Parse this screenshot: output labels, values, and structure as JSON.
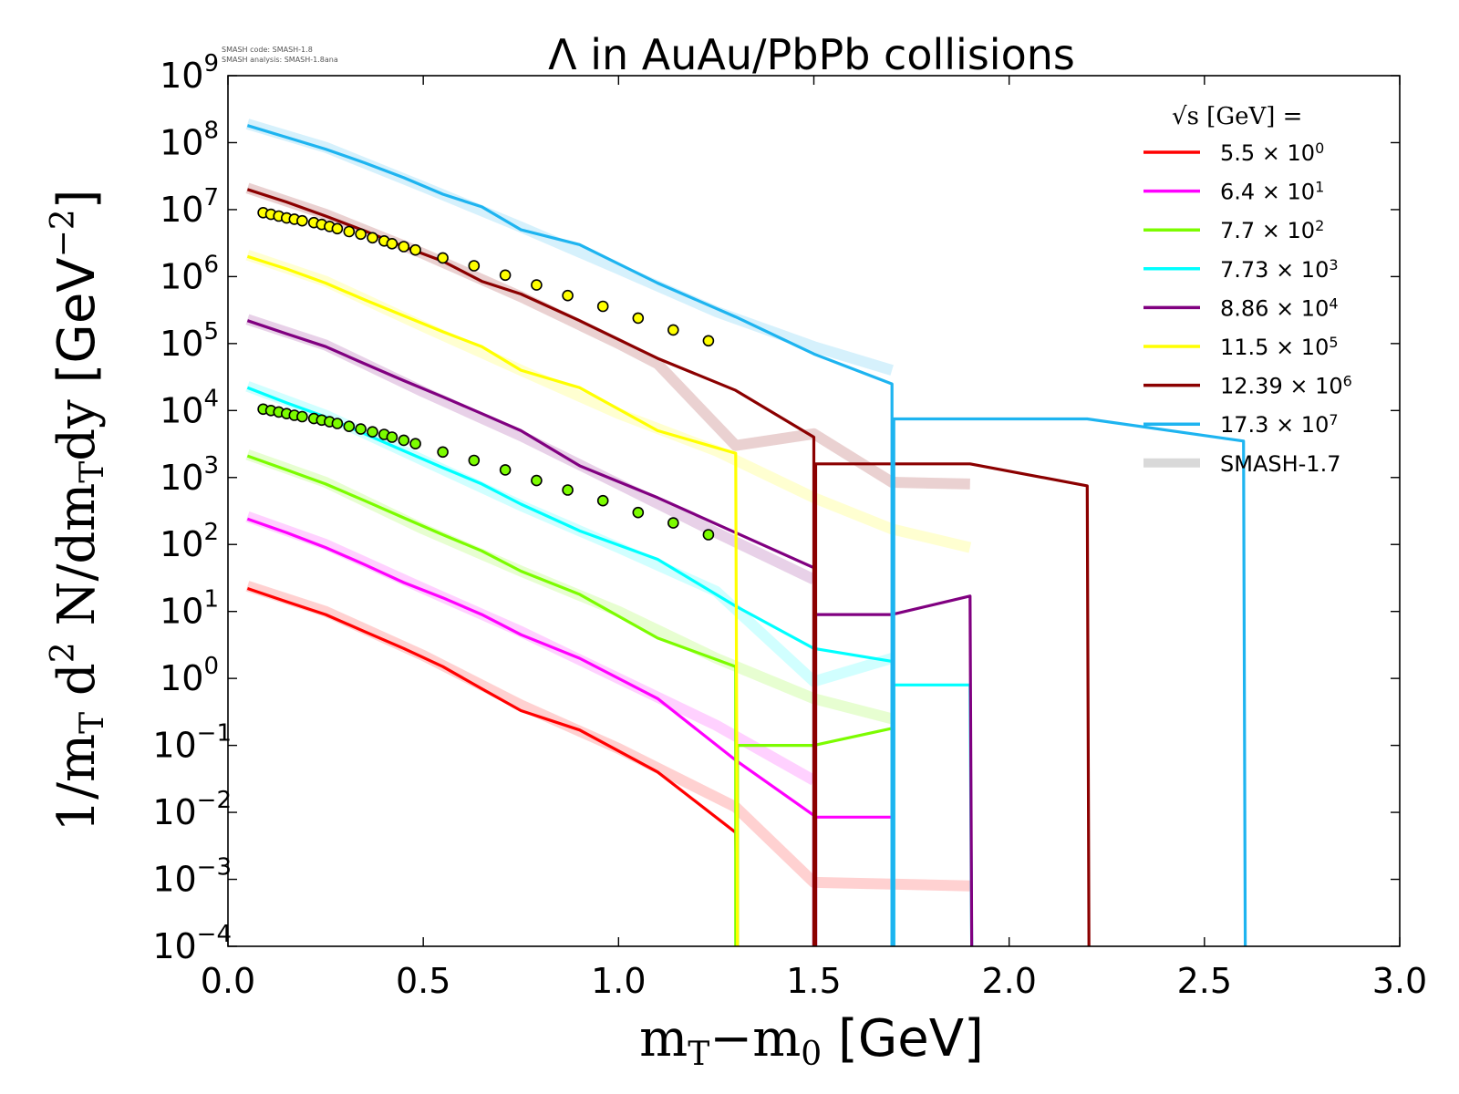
{
  "credits": {
    "line1": "SMASH code:      SMASH-1.8",
    "line2": "SMASH analysis: SMASH-1.8ana"
  },
  "chart_data": {
    "type": "line",
    "title": "Λ in AuAu/PbPb collisions",
    "xlabel": "m_T−m_0 [GeV]",
    "ylabel": "1/m_T d^2 N/dm_T dy [GeV^−2]",
    "xlim": [
      0.0,
      3.0
    ],
    "ylim": [
      0.0001,
      1000000000
    ],
    "yscale": "log",
    "x_ticks": [
      "0.0",
      "0.5",
      "1.0",
      "1.5",
      "2.0",
      "2.5",
      "3.0"
    ],
    "y_tick_exponents": [
      "9",
      "8",
      "7",
      "6",
      "5",
      "4",
      "3",
      "2",
      "1",
      "0",
      "−1",
      "−2",
      "−3",
      "−4"
    ],
    "legend": {
      "placement": "top-right",
      "title": "√s  [GeV] =",
      "reference_label": "SMASH-1.7"
    },
    "series": [
      {
        "name": "5.5 × 10^0",
        "label_main": "5.5",
        "label_exp": "0",
        "color": "#ff0000",
        "points": [
          [
            0.05,
            22
          ],
          [
            0.15,
            14
          ],
          [
            0.25,
            9
          ],
          [
            0.35,
            5
          ],
          [
            0.45,
            2.8
          ],
          [
            0.55,
            1.5
          ],
          [
            0.65,
            0.7
          ],
          [
            0.75,
            0.33
          ],
          [
            0.9,
            0.17
          ],
          [
            1.1,
            0.04
          ],
          [
            1.3,
            0.005
          ]
        ],
        "drop_x": 1.3,
        "reference": [
          [
            0.05,
            24
          ],
          [
            0.25,
            10
          ],
          [
            0.5,
            2.2
          ],
          [
            0.75,
            0.4
          ],
          [
            1.0,
            0.09
          ],
          [
            1.3,
            0.012
          ],
          [
            1.5,
            0.0009
          ],
          [
            1.7,
            0.00085
          ],
          [
            1.9,
            0.0008
          ]
        ]
      },
      {
        "name": "6.4 × 10^1",
        "label_main": "6.4",
        "label_exp": "1",
        "color": "#ff00ff",
        "points": [
          [
            0.05,
            240
          ],
          [
            0.15,
            150
          ],
          [
            0.25,
            90
          ],
          [
            0.35,
            50
          ],
          [
            0.45,
            27
          ],
          [
            0.55,
            16
          ],
          [
            0.65,
            9
          ],
          [
            0.75,
            4.5
          ],
          [
            0.9,
            2
          ],
          [
            1.1,
            0.5
          ],
          [
            1.3,
            0.06
          ],
          [
            1.5,
            0.009
          ],
          [
            1.7,
            0.0085
          ]
        ],
        "drop_x": 1.5,
        "reference": [
          [
            0.05,
            260
          ],
          [
            0.25,
            100
          ],
          [
            0.5,
            22
          ],
          [
            0.75,
            5
          ],
          [
            1.0,
            1
          ],
          [
            1.25,
            0.2
          ],
          [
            1.5,
            0.03
          ]
        ]
      },
      {
        "name": "7.7 × 10^2",
        "label_main": "7.7",
        "label_exp": "2",
        "color": "#7cfc00",
        "points": [
          [
            0.05,
            2100
          ],
          [
            0.15,
            1300
          ],
          [
            0.25,
            800
          ],
          [
            0.35,
            450
          ],
          [
            0.45,
            250
          ],
          [
            0.55,
            140
          ],
          [
            0.65,
            80
          ],
          [
            0.75,
            40
          ],
          [
            0.9,
            18
          ],
          [
            1.1,
            4
          ],
          [
            1.3,
            1.5
          ],
          [
            1.5,
            0.1
          ],
          [
            1.7,
            0.18
          ]
        ],
        "drop_x": 1.3,
        "reference": [
          [
            0.05,
            2200
          ],
          [
            0.25,
            850
          ],
          [
            0.5,
            170
          ],
          [
            0.75,
            40
          ],
          [
            1.0,
            10
          ],
          [
            1.25,
            2
          ],
          [
            1.5,
            0.5
          ],
          [
            1.7,
            0.25
          ]
        ]
      },
      {
        "name": "7.73 × 10^3",
        "label_main": "7.73",
        "label_exp": "3",
        "color": "#00ffff",
        "points": [
          [
            0.05,
            22000
          ],
          [
            0.15,
            13000
          ],
          [
            0.25,
            8000
          ],
          [
            0.35,
            4500
          ],
          [
            0.45,
            2500
          ],
          [
            0.55,
            1400
          ],
          [
            0.65,
            800
          ],
          [
            0.75,
            400
          ],
          [
            0.9,
            160
          ],
          [
            1.1,
            60
          ],
          [
            1.3,
            12
          ],
          [
            1.5,
            2.8
          ],
          [
            1.7,
            1.8
          ],
          [
            1.9,
            0.8
          ]
        ],
        "drop_x": 1.7,
        "reference": [
          [
            0.05,
            23000
          ],
          [
            0.25,
            8500
          ],
          [
            0.5,
            1800
          ],
          [
            0.75,
            380
          ],
          [
            1.0,
            90
          ],
          [
            1.25,
            20
          ],
          [
            1.5,
            0.9
          ],
          [
            1.7,
            2
          ]
        ]
      },
      {
        "name": "8.86 × 10^4",
        "label_main": "8.86",
        "label_exp": "4",
        "color": "#800080",
        "points": [
          [
            0.05,
            220000
          ],
          [
            0.15,
            140000
          ],
          [
            0.25,
            90000
          ],
          [
            0.35,
            50000
          ],
          [
            0.45,
            28000
          ],
          [
            0.55,
            16000
          ],
          [
            0.65,
            9000
          ],
          [
            0.75,
            5000
          ],
          [
            0.9,
            1500
          ],
          [
            1.1,
            500
          ],
          [
            1.3,
            150
          ],
          [
            1.5,
            45
          ],
          [
            1.7,
            9
          ],
          [
            1.9,
            17
          ]
        ],
        "drop_x": 1.5,
        "reference": [
          [
            0.05,
            230000
          ],
          [
            0.25,
            95000
          ],
          [
            0.5,
            19000
          ],
          [
            0.75,
            4200
          ],
          [
            1.0,
            800
          ],
          [
            1.25,
            150
          ],
          [
            1.5,
            30
          ]
        ]
      },
      {
        "name": "11.5 × 10^5",
        "label_main": "11.5",
        "label_exp": "5",
        "color": "#ffff00",
        "points": [
          [
            0.05,
            2000000
          ],
          [
            0.15,
            1300000
          ],
          [
            0.25,
            800000
          ],
          [
            0.35,
            450000
          ],
          [
            0.45,
            260000
          ],
          [
            0.55,
            150000
          ],
          [
            0.65,
            90000
          ],
          [
            0.75,
            40000
          ],
          [
            0.9,
            22000
          ],
          [
            1.1,
            5000
          ],
          [
            1.3,
            2300
          ]
        ],
        "drop_x": 1.3,
        "reference": [
          [
            0.05,
            2100000
          ],
          [
            0.25,
            850000
          ],
          [
            0.5,
            180000
          ],
          [
            0.75,
            40000
          ],
          [
            1.0,
            9000
          ],
          [
            1.25,
            2500
          ],
          [
            1.5,
            500
          ],
          [
            1.7,
            170
          ],
          [
            1.9,
            90
          ]
        ]
      },
      {
        "name": "12.39 × 10^6",
        "label_main": "12.39",
        "label_exp": "6",
        "color": "#8b0000",
        "points": [
          [
            0.05,
            20000000
          ],
          [
            0.15,
            13000000
          ],
          [
            0.25,
            8000000
          ],
          [
            0.35,
            4800000
          ],
          [
            0.45,
            2800000
          ],
          [
            0.55,
            1700000
          ],
          [
            0.65,
            850000
          ],
          [
            0.75,
            550000
          ],
          [
            0.9,
            220000
          ],
          [
            1.1,
            60000
          ],
          [
            1.3,
            20000
          ],
          [
            1.5,
            4000
          ],
          [
            1.9,
            1600
          ],
          [
            2.2,
            750
          ]
        ],
        "drop_x": 1.5,
        "reference": [
          [
            0.05,
            21000000
          ],
          [
            0.25,
            8500000
          ],
          [
            0.5,
            2200000
          ],
          [
            0.75,
            500000
          ],
          [
            1.0,
            100000
          ],
          [
            1.1,
            50000
          ],
          [
            1.3,
            3000
          ],
          [
            1.5,
            4500
          ],
          [
            1.7,
            850
          ],
          [
            1.9,
            800
          ]
        ]
      },
      {
        "name": "17.3 × 10^7",
        "label_main": "17.3",
        "label_exp": "7",
        "color": "#1eb4f0",
        "points": [
          [
            0.05,
            180000000
          ],
          [
            0.15,
            120000000
          ],
          [
            0.25,
            80000000
          ],
          [
            0.35,
            50000000
          ],
          [
            0.45,
            30000000
          ],
          [
            0.55,
            17000000
          ],
          [
            0.65,
            11000000
          ],
          [
            0.75,
            5000000
          ],
          [
            0.9,
            3000000
          ],
          [
            1.1,
            800000
          ],
          [
            1.3,
            250000
          ],
          [
            1.5,
            70000
          ],
          [
            1.7,
            25000
          ],
          [
            2.2,
            7500
          ],
          [
            2.6,
            3500
          ]
        ],
        "drop_x": 1.7,
        "reference": [
          [
            0.05,
            190000000
          ],
          [
            0.25,
            85000000
          ],
          [
            0.5,
            22000000
          ],
          [
            0.75,
            5500000
          ],
          [
            1.0,
            1300000
          ],
          [
            1.25,
            300000
          ],
          [
            1.5,
            90000
          ],
          [
            1.7,
            40000
          ]
        ]
      }
    ],
    "experimental_points": [
      {
        "fill": "#ffff00",
        "x": [
          0.09,
          0.11,
          0.13,
          0.15,
          0.17,
          0.19,
          0.22,
          0.24,
          0.26,
          0.28,
          0.31,
          0.34,
          0.37,
          0.4,
          0.42,
          0.45,
          0.48,
          0.55,
          0.63,
          0.71,
          0.79,
          0.87,
          0.96,
          1.05,
          1.14,
          1.23
        ],
        "y": [
          9000000,
          8500000,
          8000000,
          7500000,
          7200000,
          6800000,
          6400000,
          6000000,
          5600000,
          5200000,
          4700000,
          4300000,
          3800000,
          3400000,
          3100000,
          2800000,
          2500000,
          1900000,
          1450000,
          1050000,
          750000,
          520000,
          360000,
          240000,
          160000,
          110000
        ]
      },
      {
        "fill": "#7cfc00",
        "x": [
          0.09,
          0.11,
          0.13,
          0.15,
          0.17,
          0.19,
          0.22,
          0.24,
          0.26,
          0.28,
          0.31,
          0.34,
          0.37,
          0.4,
          0.42,
          0.45,
          0.48,
          0.55,
          0.63,
          0.71,
          0.79,
          0.87,
          0.96,
          1.05,
          1.14,
          1.23
        ],
        "y": [
          10500,
          10000,
          9500,
          9000,
          8500,
          8100,
          7600,
          7200,
          6800,
          6400,
          5800,
          5300,
          4800,
          4400,
          4000,
          3600,
          3200,
          2400,
          1800,
          1300,
          900,
          650,
          450,
          300,
          210,
          140
        ]
      }
    ]
  }
}
